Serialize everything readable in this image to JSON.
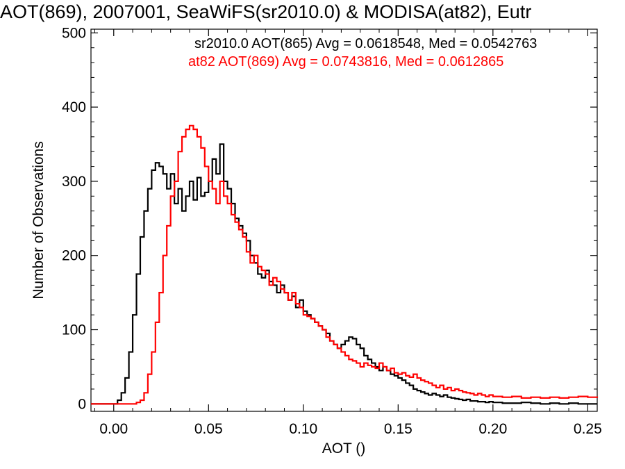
{
  "chart_data": {
    "type": "line",
    "title": "AOT(869), 2007001, SeaWiFS(sr2010.0) & MODISA(at82), Eutr",
    "xlabel": "AOT ()",
    "ylabel": "Number of Observations",
    "xlim": [
      -0.012,
      0.255
    ],
    "ylim": [
      -10,
      505
    ],
    "xticks": [
      0.0,
      0.05,
      0.1,
      0.15,
      0.2,
      0.25
    ],
    "xtick_labels": [
      "0.00",
      "0.05",
      "0.10",
      "0.15",
      "0.20",
      "0.25"
    ],
    "yticks": [
      0,
      100,
      200,
      300,
      400,
      500
    ],
    "ytick_labels": [
      "0",
      "100",
      "200",
      "300",
      "400",
      "500"
    ],
    "grid": false,
    "legend_position": "top-right",
    "series": [
      {
        "name": "sr2010.0 AOT(865) Avg = 0.0618548, Med = 0.0542763",
        "color": "#000000",
        "points": [
          [
            -0.012,
            0
          ],
          [
            0.0,
            0
          ],
          [
            0.002,
            5
          ],
          [
            0.004,
            15
          ],
          [
            0.006,
            35
          ],
          [
            0.008,
            70
          ],
          [
            0.01,
            120
          ],
          [
            0.012,
            175
          ],
          [
            0.014,
            225
          ],
          [
            0.016,
            260
          ],
          [
            0.018,
            290
          ],
          [
            0.02,
            315
          ],
          [
            0.022,
            325
          ],
          [
            0.024,
            320
          ],
          [
            0.026,
            310
          ],
          [
            0.028,
            290
          ],
          [
            0.03,
            310
          ],
          [
            0.032,
            270
          ],
          [
            0.034,
            290
          ],
          [
            0.036,
            260
          ],
          [
            0.038,
            280
          ],
          [
            0.04,
            300
          ],
          [
            0.042,
            275
          ],
          [
            0.044,
            305
          ],
          [
            0.046,
            280
          ],
          [
            0.048,
            285
          ],
          [
            0.05,
            300
          ],
          [
            0.052,
            330
          ],
          [
            0.054,
            310
          ],
          [
            0.056,
            350
          ],
          [
            0.058,
            300
          ],
          [
            0.06,
            290
          ],
          [
            0.062,
            270
          ],
          [
            0.064,
            250
          ],
          [
            0.066,
            240
          ],
          [
            0.068,
            230
          ],
          [
            0.07,
            220
          ],
          [
            0.072,
            200
          ],
          [
            0.074,
            190
          ],
          [
            0.076,
            175
          ],
          [
            0.078,
            170
          ],
          [
            0.08,
            180
          ],
          [
            0.082,
            165
          ],
          [
            0.084,
            160
          ],
          [
            0.086,
            150
          ],
          [
            0.088,
            160
          ],
          [
            0.09,
            150
          ],
          [
            0.092,
            140
          ],
          [
            0.094,
            145
          ],
          [
            0.096,
            130
          ],
          [
            0.098,
            140
          ],
          [
            0.1,
            125
          ],
          [
            0.102,
            120
          ],
          [
            0.104,
            115
          ],
          [
            0.106,
            110
          ],
          [
            0.108,
            105
          ],
          [
            0.11,
            100
          ],
          [
            0.112,
            95
          ],
          [
            0.114,
            85
          ],
          [
            0.116,
            80
          ],
          [
            0.118,
            75
          ],
          [
            0.12,
            80
          ],
          [
            0.122,
            85
          ],
          [
            0.124,
            90
          ],
          [
            0.126,
            88
          ],
          [
            0.128,
            80
          ],
          [
            0.13,
            75
          ],
          [
            0.132,
            65
          ],
          [
            0.134,
            60
          ],
          [
            0.136,
            55
          ],
          [
            0.138,
            50
          ],
          [
            0.14,
            45
          ],
          [
            0.142,
            50
          ],
          [
            0.144,
            45
          ],
          [
            0.146,
            40
          ],
          [
            0.148,
            38
          ],
          [
            0.15,
            35
          ],
          [
            0.152,
            32
          ],
          [
            0.154,
            28
          ],
          [
            0.156,
            25
          ],
          [
            0.158,
            20
          ],
          [
            0.16,
            18
          ],
          [
            0.162,
            16
          ],
          [
            0.164,
            14
          ],
          [
            0.166,
            12
          ],
          [
            0.168,
            14
          ],
          [
            0.17,
            12
          ],
          [
            0.172,
            10
          ],
          [
            0.174,
            12
          ],
          [
            0.176,
            9
          ],
          [
            0.178,
            8
          ],
          [
            0.18,
            7
          ],
          [
            0.182,
            6
          ],
          [
            0.184,
            5
          ],
          [
            0.186,
            6
          ],
          [
            0.188,
            4
          ],
          [
            0.19,
            4
          ],
          [
            0.192,
            3
          ],
          [
            0.194,
            3
          ],
          [
            0.196,
            2
          ],
          [
            0.198,
            3
          ],
          [
            0.2,
            2
          ],
          [
            0.205,
            1
          ],
          [
            0.21,
            1
          ],
          [
            0.215,
            2
          ],
          [
            0.22,
            1
          ],
          [
            0.225,
            0
          ],
          [
            0.23,
            1
          ],
          [
            0.235,
            0
          ],
          [
            0.24,
            1
          ],
          [
            0.245,
            0
          ],
          [
            0.255,
            0
          ]
        ]
      },
      {
        "name": "at82 AOT(869) Avg = 0.0743816, Med = 0.0612865",
        "color": "#ff0000",
        "points": [
          [
            -0.012,
            0
          ],
          [
            0.01,
            0
          ],
          [
            0.012,
            2
          ],
          [
            0.014,
            5
          ],
          [
            0.016,
            15
          ],
          [
            0.018,
            40
          ],
          [
            0.02,
            70
          ],
          [
            0.022,
            110
          ],
          [
            0.024,
            150
          ],
          [
            0.026,
            200
          ],
          [
            0.028,
            240
          ],
          [
            0.03,
            280
          ],
          [
            0.032,
            300
          ],
          [
            0.034,
            340
          ],
          [
            0.036,
            360
          ],
          [
            0.038,
            370
          ],
          [
            0.04,
            375
          ],
          [
            0.042,
            370
          ],
          [
            0.044,
            360
          ],
          [
            0.046,
            345
          ],
          [
            0.048,
            320
          ],
          [
            0.05,
            300
          ],
          [
            0.052,
            290
          ],
          [
            0.054,
            270
          ],
          [
            0.056,
            300
          ],
          [
            0.058,
            280
          ],
          [
            0.06,
            270
          ],
          [
            0.062,
            255
          ],
          [
            0.064,
            245
          ],
          [
            0.066,
            235
          ],
          [
            0.068,
            225
          ],
          [
            0.07,
            205
          ],
          [
            0.072,
            190
          ],
          [
            0.074,
            200
          ],
          [
            0.076,
            185
          ],
          [
            0.078,
            180
          ],
          [
            0.08,
            175
          ],
          [
            0.082,
            160
          ],
          [
            0.084,
            170
          ],
          [
            0.086,
            165
          ],
          [
            0.088,
            155
          ],
          [
            0.09,
            150
          ],
          [
            0.092,
            140
          ],
          [
            0.094,
            150
          ],
          [
            0.096,
            135
          ],
          [
            0.098,
            130
          ],
          [
            0.1,
            120
          ],
          [
            0.102,
            118
          ],
          [
            0.104,
            115
          ],
          [
            0.106,
            110
          ],
          [
            0.108,
            105
          ],
          [
            0.11,
            100
          ],
          [
            0.112,
            90
          ],
          [
            0.114,
            85
          ],
          [
            0.116,
            80
          ],
          [
            0.118,
            75
          ],
          [
            0.12,
            70
          ],
          [
            0.122,
            65
          ],
          [
            0.124,
            60
          ],
          [
            0.126,
            58
          ],
          [
            0.128,
            55
          ],
          [
            0.13,
            50
          ],
          [
            0.132,
            55
          ],
          [
            0.134,
            52
          ],
          [
            0.136,
            50
          ],
          [
            0.138,
            48
          ],
          [
            0.14,
            55
          ],
          [
            0.142,
            50
          ],
          [
            0.144,
            45
          ],
          [
            0.146,
            48
          ],
          [
            0.148,
            42
          ],
          [
            0.15,
            40
          ],
          [
            0.152,
            42
          ],
          [
            0.154,
            38
          ],
          [
            0.156,
            36
          ],
          [
            0.158,
            40
          ],
          [
            0.16,
            35
          ],
          [
            0.162,
            32
          ],
          [
            0.164,
            30
          ],
          [
            0.166,
            28
          ],
          [
            0.168,
            25
          ],
          [
            0.17,
            22
          ],
          [
            0.172,
            25
          ],
          [
            0.174,
            20
          ],
          [
            0.176,
            22
          ],
          [
            0.178,
            18
          ],
          [
            0.18,
            20
          ],
          [
            0.182,
            18
          ],
          [
            0.184,
            16
          ],
          [
            0.186,
            15
          ],
          [
            0.188,
            14
          ],
          [
            0.19,
            12
          ],
          [
            0.192,
            14
          ],
          [
            0.194,
            12
          ],
          [
            0.196,
            10
          ],
          [
            0.198,
            12
          ],
          [
            0.2,
            10
          ],
          [
            0.205,
            9
          ],
          [
            0.21,
            10
          ],
          [
            0.215,
            8
          ],
          [
            0.22,
            9
          ],
          [
            0.225,
            8
          ],
          [
            0.23,
            9
          ],
          [
            0.235,
            8
          ],
          [
            0.24,
            9
          ],
          [
            0.245,
            10
          ],
          [
            0.25,
            9
          ],
          [
            0.255,
            8
          ]
        ]
      }
    ]
  }
}
